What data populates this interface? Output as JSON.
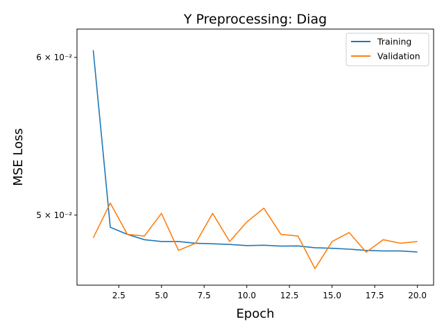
{
  "chart_data": {
    "type": "line",
    "title": "Y Preprocessing: Diag",
    "xlabel": "Epoch",
    "ylabel": "MSE Loss",
    "x": [
      1,
      2,
      3,
      4,
      5,
      6,
      7,
      8,
      9,
      10,
      11,
      12,
      13,
      14,
      15,
      16,
      17,
      18,
      19,
      20
    ],
    "xlim": [
      0.05,
      20.95
    ],
    "ylim": [
      0.04611,
      0.062
    ],
    "yscale": "log",
    "x_ticks": [
      2.5,
      5.0,
      7.5,
      10.0,
      12.5,
      15.0,
      17.5,
      20.0
    ],
    "x_tick_labels": [
      "2.5",
      "5.0",
      "7.5",
      "10.0",
      "12.5",
      "15.0",
      "17.5",
      "20.0"
    ],
    "y_ticks": [
      0.05,
      0.06
    ],
    "y_tick_labels": [
      "5 × 10⁻²",
      "6 × 10⁻²"
    ],
    "legend_position": "top-right",
    "grid": false,
    "series": [
      {
        "name": "Training",
        "color": "#1f77b4",
        "values": [
          0.0605,
          0.0493,
          0.0489,
          0.0486,
          0.0485,
          0.0485,
          0.0484,
          0.04837,
          0.04833,
          0.04827,
          0.04829,
          0.04824,
          0.04825,
          0.04815,
          0.04812,
          0.04807,
          0.048,
          0.04797,
          0.04797,
          0.04791
        ]
      },
      {
        "name": "Validation",
        "color": "#ff7f0e",
        "values": [
          0.0487,
          0.0507,
          0.0489,
          0.0488,
          0.0501,
          0.048,
          0.0484,
          0.0501,
          0.0485,
          0.0496,
          0.0504,
          0.0489,
          0.0488,
          0.047,
          0.0485,
          0.049,
          0.0479,
          0.0486,
          0.0484,
          0.0485
        ]
      }
    ]
  }
}
